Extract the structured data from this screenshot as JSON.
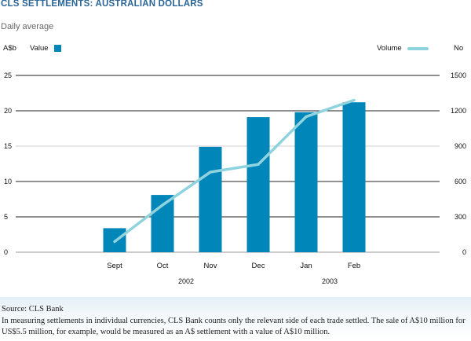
{
  "title": "CLS SETTLEMENTS: AUSTRALIAN DOLLARS",
  "subtitle": "Daily average",
  "chart_data": {
    "type": "bar+line",
    "categories": [
      "Sept",
      "Oct",
      "Nov",
      "Dec",
      "Jan",
      "Feb"
    ],
    "year_labels": [
      "2002",
      "2003"
    ],
    "left_axis": {
      "label": "A$b",
      "ylim": [
        0,
        25
      ],
      "ticks": [
        "0",
        "5",
        "10",
        "15",
        "20",
        "25"
      ]
    },
    "right_axis": {
      "label": "No",
      "ylim": [
        0,
        1500
      ],
      "ticks": [
        "0",
        "300",
        "600",
        "900",
        "1200",
        "1500"
      ]
    },
    "series": [
      {
        "name": "Value",
        "type": "bar",
        "axis": "left",
        "color": "#0086b8",
        "values": [
          3.4,
          8.1,
          14.9,
          19.1,
          19.8,
          21.2
        ]
      },
      {
        "name": "Volume",
        "type": "line",
        "axis": "right",
        "color": "#8fd3df",
        "values": [
          90,
          400,
          680,
          745,
          1150,
          1290
        ]
      }
    ],
    "legend": "top"
  },
  "footer": {
    "source": "Source: CLS Bank",
    "note": "In measuring settlements in individual currencies, CLS Bank counts only the relevant side of each trade settled. The sale of A$10 million for US$5.5 million, for example, would be measured as an A$ settlement with a value of A$10 million."
  }
}
